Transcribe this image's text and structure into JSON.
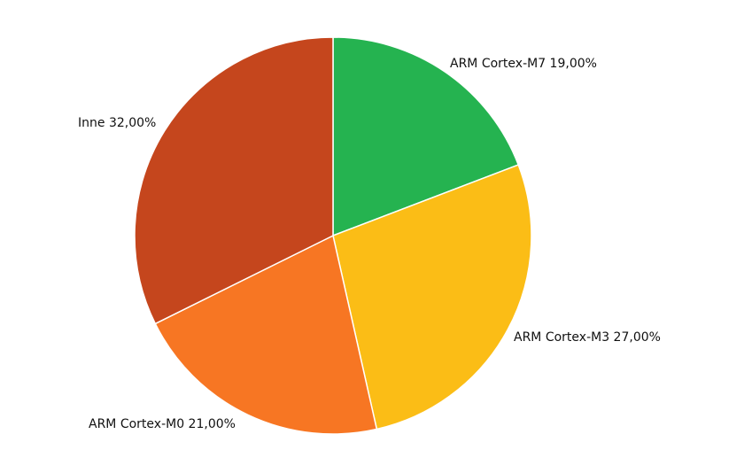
{
  "chart_data": {
    "type": "pie",
    "title": "",
    "start_angle_deg": 0,
    "direction": "clockwise",
    "slices": [
      {
        "label": "ARM Cortex-M7",
        "value": 19.0,
        "display": "ARM Cortex-M7 19,00%",
        "color": "#25b350"
      },
      {
        "label": "ARM Cortex-M3",
        "value": 27.0,
        "display": "ARM Cortex-M3 27,00%",
        "color": "#fbbd16"
      },
      {
        "label": "ARM Cortex-M0",
        "value": 21.0,
        "display": "ARM Cortex-M0 21,00%",
        "color": "#f77623"
      },
      {
        "label": "Inne",
        "value": 32.0,
        "display": "Inne 32,00%",
        "color": "#c5461d"
      }
    ]
  }
}
